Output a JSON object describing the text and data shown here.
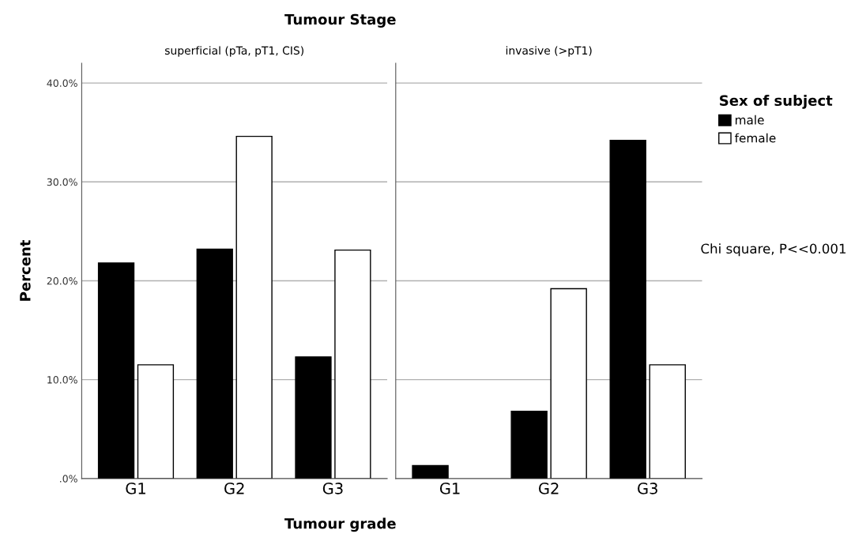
{
  "chart_data": [
    {
      "type": "bar",
      "title": "superficial (pTa, pT1, CIS)",
      "ylabel": "Percent",
      "xlabel": "Tumour grade",
      "annotations": [
        "Tumour Stage"
      ],
      "legend_title": "Sex of subject",
      "legend": "right",
      "categories": [
        "G1",
        "G2",
        "G3"
      ],
      "series": [
        {
          "name": "male",
          "color": "#000000",
          "values": [
            21.8,
            23.2,
            12.3
          ]
        },
        {
          "name": "female",
          "color": "#ffffff",
          "values": [
            11.5,
            34.6,
            23.1
          ]
        }
      ],
      "ylim": [
        0,
        42
      ],
      "yticks": [
        {
          "value": 0,
          "label": ".0%"
        },
        {
          "value": 10,
          "label": "10.0%"
        },
        {
          "value": 20,
          "label": "20.0%"
        },
        {
          "value": 30,
          "label": "30.0%"
        },
        {
          "value": 40,
          "label": "40.0%"
        }
      ],
      "grid": "y"
    },
    {
      "type": "bar",
      "title": "invasive (>pT1)",
      "annotations": [
        "Chi square, P<<0.001"
      ],
      "categories": [
        "G1",
        "G2",
        "G3"
      ],
      "series": [
        {
          "color": "#000000",
          "values": [
            1.3,
            6.8,
            34.2
          ]
        },
        {
          "color": "#ffffff",
          "values": [
            null,
            19.2,
            11.5
          ]
        }
      ],
      "ylim": [
        0,
        42
      ],
      "yticks": [
        {
          "value": 0,
          "label": null
        },
        {
          "value": 10,
          "label": null
        },
        {
          "value": 20,
          "label": null
        },
        {
          "value": 30,
          "label": null
        },
        {
          "value": 40,
          "label": null
        }
      ],
      "grid": "y",
      "tick_labels": "x"
    }
  ]
}
